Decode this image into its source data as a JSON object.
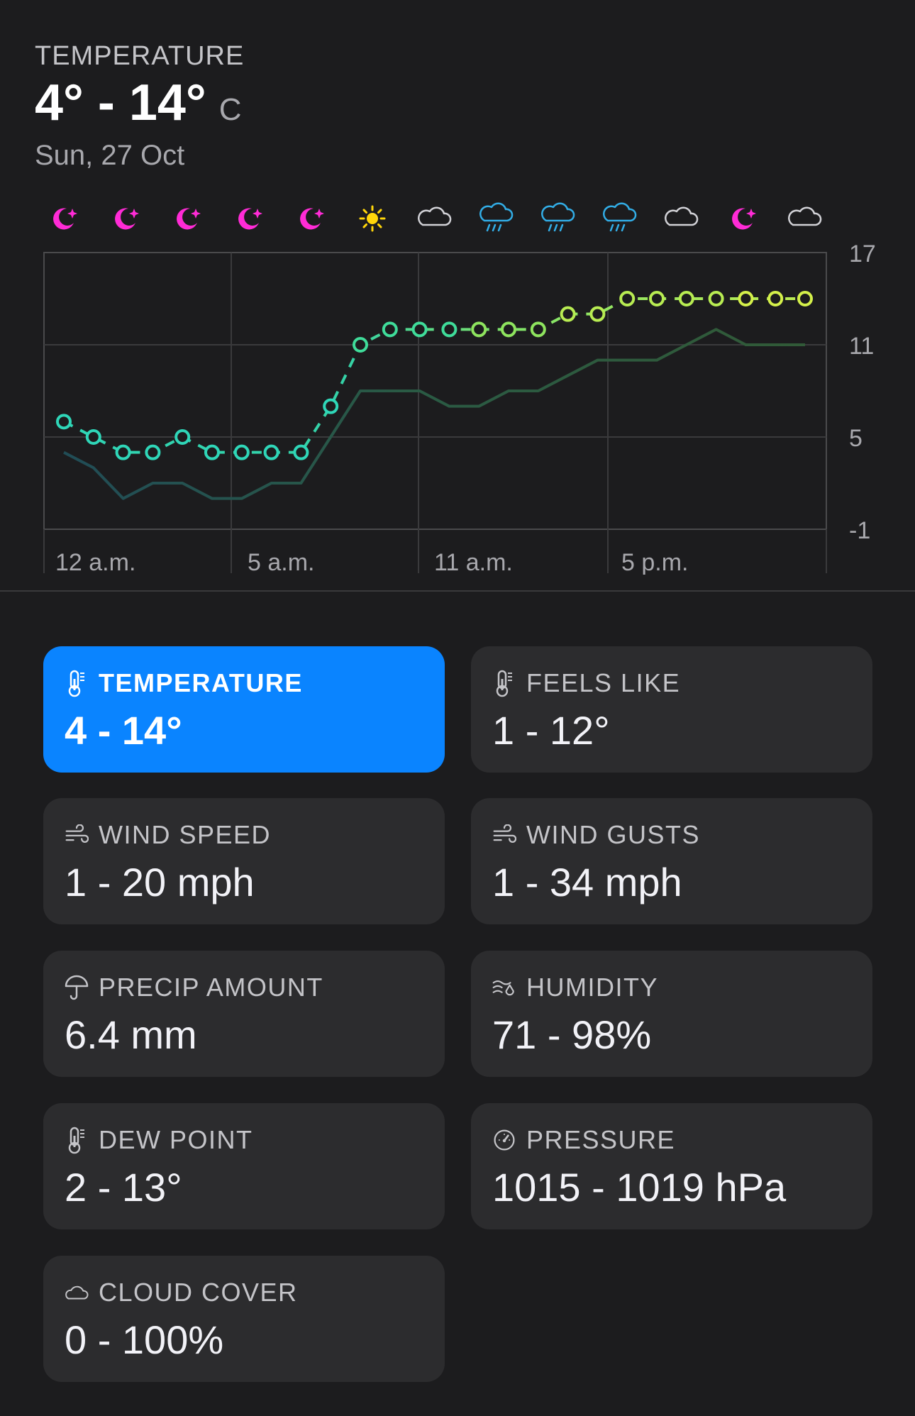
{
  "header": {
    "label": "TEMPERATURE",
    "range": "4° - 14°",
    "unit": "C",
    "date": "Sun, 27 Oct"
  },
  "colors": {
    "background": "#1c1c1e",
    "card": "#2c2c2e",
    "accent": "#0a84ff",
    "moon_icon": "#ff2bd6",
    "sun_icon": "#ffd60a",
    "rain_icon": "#32ade6",
    "cloud_icon": "#d1d1d6",
    "feels_like_line": "#2e5a3a"
  },
  "chart_data": {
    "type": "line",
    "x": [
      0,
      1,
      2,
      3,
      4,
      5,
      6,
      7,
      8,
      9,
      10,
      11,
      12,
      13,
      14,
      15,
      16,
      17,
      18,
      19,
      20,
      21,
      22,
      23,
      24,
      25
    ],
    "series": [
      {
        "values": [
          6,
          5,
          4,
          4,
          5,
          4,
          4,
          4,
          4,
          7,
          11,
          12,
          12,
          12,
          12,
          12,
          12,
          13,
          13,
          14,
          14,
          14,
          14,
          14,
          14,
          14
        ]
      },
      {
        "values": [
          4,
          3,
          1,
          2,
          2,
          1,
          1,
          2,
          2,
          5,
          8,
          8,
          8,
          7,
          7,
          8,
          8,
          9,
          10,
          10,
          10,
          11,
          12,
          11,
          11,
          11
        ]
      }
    ],
    "line_colors": [
      "#2fd6b8",
      "#2e5a3a"
    ],
    "hourly_icons": [
      "moon-icon",
      "moon-icon",
      "moon-icon",
      "moon-icon",
      "moon-icon",
      "sun-icon",
      "cloud-icon",
      "rain-icon",
      "rain-icon",
      "rain-icon",
      "cloud-icon",
      "moon-icon",
      "cloud-icon"
    ],
    "x_tick_labels": [
      "12 a.m.",
      "5 a.m.",
      "11 a.m.",
      "5 p.m."
    ],
    "y_ticks": [
      17,
      11,
      5,
      -1
    ],
    "y_tick_labels": [
      "17",
      "11",
      "5",
      "-1"
    ],
    "ylim": [
      -1,
      17
    ],
    "grid": true,
    "title": "",
    "xlabel": "",
    "ylabel": ""
  },
  "cards": [
    {
      "label": "TEMPERATURE",
      "value": "4 - 14°",
      "icon": "thermometer-icon",
      "active": true
    },
    {
      "label": "FEELS LIKE",
      "value": "1 - 12°",
      "icon": "thermometer-icon",
      "active": false
    },
    {
      "label": "WIND SPEED",
      "value": "1 - 20 mph",
      "icon": "wind-icon",
      "active": false
    },
    {
      "label": "WIND GUSTS",
      "value": "1 - 34 mph",
      "icon": "wind-icon",
      "active": false
    },
    {
      "label": "PRECIP AMOUNT",
      "value": "6.4 mm",
      "icon": "umbrella-icon",
      "active": false
    },
    {
      "label": "HUMIDITY",
      "value": "71 - 98%",
      "icon": "humidity-icon",
      "active": false
    },
    {
      "label": "DEW POINT",
      "value": "2 - 13°",
      "icon": "thermometer-icon",
      "active": false
    },
    {
      "label": "PRESSURE",
      "value": "1015 - 1019 hPa",
      "icon": "gauge-icon",
      "active": false
    },
    {
      "label": "CLOUD COVER",
      "value": "0 - 100%",
      "icon": "cloud-icon",
      "active": false
    }
  ]
}
